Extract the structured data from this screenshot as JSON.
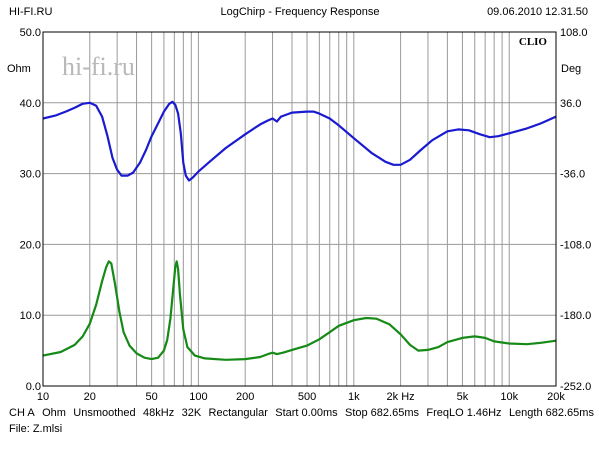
{
  "header": {
    "left": "HI-FI.RU",
    "center": "LogChirp - Frequency Response",
    "right": "09.06.2010 12.31.50"
  },
  "watermark": {
    "site": "hi-fi.ru",
    "brand": "CLIO"
  },
  "footer": {
    "items": [
      "CH A",
      "Ohm",
      "Unsmoothed",
      "48kHz",
      "32K",
      "Rectangular",
      "Start 0.00ms",
      "Stop 682.65ms",
      "FreqLO 1.46Hz",
      "Length 682.65ms"
    ],
    "file": "File: Z.mlsi"
  },
  "colors": {
    "magnitude": "#1a1ad0",
    "phase": "#168a16",
    "grid": "#9a9a9a",
    "watermark": "#b8b8b8"
  },
  "chart_data": {
    "type": "line",
    "xscale": "log",
    "xlim": [
      10,
      20000
    ],
    "ylim": [
      0,
      50
    ],
    "y2lim": [
      -252,
      108
    ],
    "ylabel": "Ohm",
    "y2label": "Deg",
    "grid": true,
    "xticks": [
      {
        "v": 10,
        "label": "10"
      },
      {
        "v": 20,
        "label": "20"
      },
      {
        "v": 50,
        "label": "50"
      },
      {
        "v": 100,
        "label": "100"
      },
      {
        "v": 200,
        "label": "200"
      },
      {
        "v": 500,
        "label": "500"
      },
      {
        "v": 1000,
        "label": "1k"
      },
      {
        "v": 2000,
        "label": "2k Hz"
      },
      {
        "v": 5000,
        "label": "5k"
      },
      {
        "v": 10000,
        "label": "10k"
      },
      {
        "v": 20000,
        "label": "20k"
      }
    ],
    "yticks": [
      {
        "v": 0,
        "label": "0.0"
      },
      {
        "v": 10,
        "label": "10.0"
      },
      {
        "v": 20,
        "label": "20.0"
      },
      {
        "v": 30,
        "label": "30.0"
      },
      {
        "v": 40,
        "label": "40.0"
      },
      {
        "v": 50,
        "label": "50.0"
      }
    ],
    "y2ticks": [
      {
        "v": -252,
        "label": "-252.0"
      },
      {
        "v": -180,
        "label": "-180.0"
      },
      {
        "v": -108,
        "label": "-108.0"
      },
      {
        "v": -36,
        "label": "-36.0"
      },
      {
        "v": 36,
        "label": "36.0"
      },
      {
        "v": 108,
        "label": "108.0"
      }
    ],
    "series": [
      {
        "axis": "right",
        "points": [
          [
            10,
            20
          ],
          [
            12,
            23
          ],
          [
            14,
            27
          ],
          [
            16,
            31
          ],
          [
            18,
            35
          ],
          [
            20,
            36
          ],
          [
            22,
            33
          ],
          [
            24,
            22
          ],
          [
            26,
            2
          ],
          [
            28,
            -20
          ],
          [
            30,
            -32
          ],
          [
            32,
            -38
          ],
          [
            35,
            -38
          ],
          [
            38,
            -35
          ],
          [
            42,
            -25
          ],
          [
            46,
            -12
          ],
          [
            50,
            2
          ],
          [
            55,
            15
          ],
          [
            60,
            27
          ],
          [
            65,
            35
          ],
          [
            68,
            37
          ],
          [
            71,
            34
          ],
          [
            74,
            25
          ],
          [
            77,
            5
          ],
          [
            80,
            -25
          ],
          [
            83,
            -38
          ],
          [
            87,
            -43
          ],
          [
            92,
            -40
          ],
          [
            100,
            -34
          ],
          [
            120,
            -23
          ],
          [
            150,
            -10
          ],
          [
            200,
            4
          ],
          [
            250,
            14
          ],
          [
            280,
            18
          ],
          [
            300,
            20
          ],
          [
            320,
            17
          ],
          [
            340,
            22
          ],
          [
            400,
            26
          ],
          [
            500,
            27
          ],
          [
            550,
            27
          ],
          [
            600,
            25
          ],
          [
            700,
            20
          ],
          [
            800,
            13
          ],
          [
            1000,
            0
          ],
          [
            1300,
            -15
          ],
          [
            1600,
            -24
          ],
          [
            1800,
            -27
          ],
          [
            2000,
            -27
          ],
          [
            2300,
            -22
          ],
          [
            2700,
            -12
          ],
          [
            3200,
            -2
          ],
          [
            4000,
            7
          ],
          [
            4700,
            9
          ],
          [
            5500,
            8
          ],
          [
            6500,
            4
          ],
          [
            7500,
            1
          ],
          [
            8500,
            2
          ],
          [
            10000,
            5
          ],
          [
            13000,
            10
          ],
          [
            16000,
            15
          ],
          [
            20000,
            22
          ]
        ]
      },
      {
        "axis": "left",
        "points": [
          [
            10,
            4.3
          ],
          [
            13,
            4.8
          ],
          [
            16,
            5.8
          ],
          [
            18,
            7.0
          ],
          [
            20,
            8.8
          ],
          [
            22,
            11.5
          ],
          [
            24,
            14.8
          ],
          [
            25.5,
            16.8
          ],
          [
            26.5,
            17.6
          ],
          [
            27.5,
            17.3
          ],
          [
            29,
            14.5
          ],
          [
            31,
            10.5
          ],
          [
            33,
            7.6
          ],
          [
            36,
            5.7
          ],
          [
            40,
            4.6
          ],
          [
            45,
            4.0
          ],
          [
            50,
            3.8
          ],
          [
            55,
            4.0
          ],
          [
            60,
            5.0
          ],
          [
            63,
            6.5
          ],
          [
            66,
            9.5
          ],
          [
            69,
            14.0
          ],
          [
            71,
            16.8
          ],
          [
            72.5,
            17.6
          ],
          [
            74,
            16.5
          ],
          [
            76,
            13.0
          ],
          [
            80,
            8.0
          ],
          [
            85,
            5.5
          ],
          [
            95,
            4.3
          ],
          [
            110,
            3.9
          ],
          [
            150,
            3.7
          ],
          [
            200,
            3.8
          ],
          [
            250,
            4.1
          ],
          [
            280,
            4.5
          ],
          [
            300,
            4.7
          ],
          [
            320,
            4.5
          ],
          [
            350,
            4.7
          ],
          [
            400,
            5.1
          ],
          [
            500,
            5.7
          ],
          [
            600,
            6.6
          ],
          [
            700,
            7.6
          ],
          [
            800,
            8.5
          ],
          [
            1000,
            9.3
          ],
          [
            1200,
            9.6
          ],
          [
            1400,
            9.5
          ],
          [
            1700,
            8.7
          ],
          [
            2000,
            7.3
          ],
          [
            2300,
            5.8
          ],
          [
            2600,
            5.0
          ],
          [
            3000,
            5.1
          ],
          [
            3500,
            5.5
          ],
          [
            4000,
            6.2
          ],
          [
            5000,
            6.8
          ],
          [
            6000,
            7.0
          ],
          [
            7000,
            6.8
          ],
          [
            8000,
            6.3
          ],
          [
            10000,
            6.0
          ],
          [
            13000,
            5.9
          ],
          [
            16000,
            6.1
          ],
          [
            20000,
            6.4
          ]
        ]
      }
    ]
  }
}
